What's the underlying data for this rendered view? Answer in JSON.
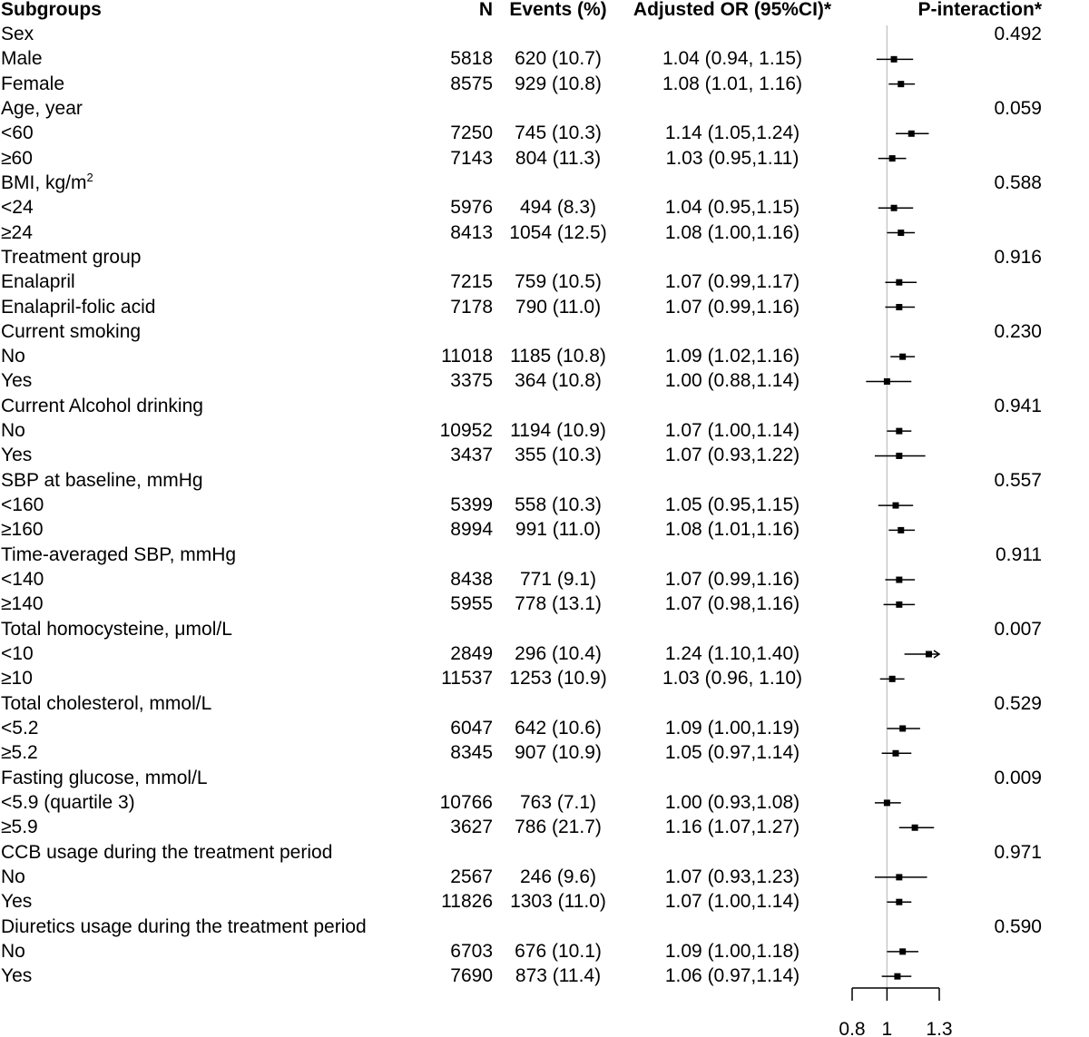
{
  "chart_data": {
    "type": "forest",
    "headers": {
      "subgroup": "Subgroups",
      "n": "N",
      "events": "Events (%)",
      "or": "Adjusted OR (95%CI)*",
      "p": "P-interaction*"
    },
    "xaxis": {
      "ticks": [
        0.8,
        1,
        1.3
      ],
      "tick_labels": [
        "0.8",
        "1",
        "1.3"
      ],
      "xlim": [
        0.8,
        1.3
      ],
      "reference": 1
    },
    "rows": [
      {
        "label": "Sex",
        "p": "0.492"
      },
      {
        "label": "Male",
        "n": "5818",
        "events": "620 (10.7)",
        "or": "1.04 (0.94, 1.15)",
        "est": 1.04,
        "lo": 0.94,
        "hi": 1.15
      },
      {
        "label": "Female",
        "n": "8575",
        "events": "929 (10.8)",
        "or": "1.08 (1.01, 1.16)",
        "est": 1.08,
        "lo": 1.01,
        "hi": 1.16
      },
      {
        "label": "Age, year",
        "p": "0.059"
      },
      {
        "label": "<60",
        "n": "7250",
        "events": "745 (10.3)",
        "or": "1.14 (1.05,1.24)",
        "est": 1.14,
        "lo": 1.05,
        "hi": 1.24
      },
      {
        "label": "≥60",
        "n": "7143",
        "events": "804 (11.3)",
        "or": "1.03 (0.95,1.11)",
        "est": 1.03,
        "lo": 0.95,
        "hi": 1.11
      },
      {
        "label": "BMI, kg/m",
        "sup": "2",
        "p": "0.588"
      },
      {
        "label": "<24",
        "n": "5976",
        "events": "494 (8.3)",
        "or": "1.04 (0.95,1.15)",
        "est": 1.04,
        "lo": 0.95,
        "hi": 1.15
      },
      {
        "label": "≥24",
        "n": "8413",
        "events": "1054 (12.5)",
        "or": "1.08 (1.00,1.16)",
        "est": 1.08,
        "lo": 1.0,
        "hi": 1.16
      },
      {
        "label": "Treatment group",
        "p": "0.916"
      },
      {
        "label": "Enalapril",
        "n": "7215",
        "events": "759 (10.5)",
        "or": "1.07 (0.99,1.17)",
        "est": 1.07,
        "lo": 0.99,
        "hi": 1.17
      },
      {
        "label": "Enalapril-folic acid",
        "n": "7178",
        "events": "790 (11.0)",
        "or": "1.07 (0.99,1.16)",
        "est": 1.07,
        "lo": 0.99,
        "hi": 1.16
      },
      {
        "label": "Current smoking",
        "p": "0.230"
      },
      {
        "label": "No",
        "n": "11018",
        "events": "1185 (10.8)",
        "or": "1.09 (1.02,1.16)",
        "est": 1.09,
        "lo": 1.02,
        "hi": 1.16
      },
      {
        "label": "Yes",
        "n": "3375",
        "events": "364 (10.8)",
        "or": "1.00 (0.88,1.14)",
        "est": 1.0,
        "lo": 0.88,
        "hi": 1.14
      },
      {
        "label": "Current Alcohol drinking",
        "p": "0.941"
      },
      {
        "label": "No",
        "n": "10952",
        "events": "1194 (10.9)",
        "or": "1.07 (1.00,1.14)",
        "est": 1.07,
        "lo": 1.0,
        "hi": 1.14
      },
      {
        "label": "Yes",
        "n": "3437",
        "events": "355 (10.3)",
        "or": "1.07 (0.93,1.22)",
        "est": 1.07,
        "lo": 0.93,
        "hi": 1.22
      },
      {
        "label": "SBP at baseline, mmHg",
        "p": "0.557"
      },
      {
        "label": "<160",
        "n": "5399",
        "events": "558 (10.3)",
        "or": "1.05 (0.95,1.15)",
        "est": 1.05,
        "lo": 0.95,
        "hi": 1.15
      },
      {
        "label": "≥160",
        "n": "8994",
        "events": "991 (11.0)",
        "or": "1.08 (1.01,1.16)",
        "est": 1.08,
        "lo": 1.01,
        "hi": 1.16
      },
      {
        "label": "Time-averaged SBP, mmHg",
        "p": "0.911"
      },
      {
        "label": "<140",
        "n": "8438",
        "events": "771 (9.1)",
        "or": "1.07 (0.99,1.16)",
        "est": 1.07,
        "lo": 0.99,
        "hi": 1.16
      },
      {
        "label": "≥140",
        "n": "5955",
        "events": "778 (13.1)",
        "or": "1.07 (0.98,1.16)",
        "est": 1.07,
        "lo": 0.98,
        "hi": 1.16
      },
      {
        "label": "Total homocysteine, μmol/L",
        "p": "0.007"
      },
      {
        "label": "<10",
        "n": "2849",
        "events": "296 (10.4)",
        "or": "1.24 (1.10,1.40)",
        "est": 1.24,
        "lo": 1.1,
        "hi": 1.4
      },
      {
        "label": "≥10",
        "n": "11537",
        "events": "1253 (10.9)",
        "or": "1.03 (0.96, 1.10)",
        "est": 1.03,
        "lo": 0.96,
        "hi": 1.1
      },
      {
        "label": "Total cholesterol, mmol/L",
        "p": "0.529"
      },
      {
        "label": "<5.2",
        "n": "6047",
        "events": "642 (10.6)",
        "or": "1.09 (1.00,1.19)",
        "est": 1.09,
        "lo": 1.0,
        "hi": 1.19
      },
      {
        "label": "≥5.2",
        "n": "8345",
        "events": "907 (10.9)",
        "or": "1.05 (0.97,1.14)",
        "est": 1.05,
        "lo": 0.97,
        "hi": 1.14
      },
      {
        "label": "Fasting glucose, mmol/L",
        "p": "0.009"
      },
      {
        "label": "<5.9 (quartile 3)",
        "n": "10766",
        "events": "763 (7.1)",
        "or": "1.00 (0.93,1.08)",
        "est": 1.0,
        "lo": 0.93,
        "hi": 1.08
      },
      {
        "label": "≥5.9",
        "n": "3627",
        "events": "786 (21.7)",
        "or": "1.16 (1.07,1.27)",
        "est": 1.16,
        "lo": 1.07,
        "hi": 1.27
      },
      {
        "label": "CCB usage during the treatment period",
        "p": "0.971"
      },
      {
        "label": "No",
        "n": "2567",
        "events": "246 (9.6)",
        "or": "1.07 (0.93,1.23)",
        "est": 1.07,
        "lo": 0.93,
        "hi": 1.23
      },
      {
        "label": "Yes",
        "n": "11826",
        "events": "1303 (11.0)",
        "or": "1.07 (1.00,1.14)",
        "est": 1.07,
        "lo": 1.0,
        "hi": 1.14
      },
      {
        "label": "Diuretics usage during the treatment period",
        "p": "0.590"
      },
      {
        "label": "No",
        "n": "6703",
        "events": "676 (10.1)",
        "or": "1.09 (1.00,1.18)",
        "est": 1.09,
        "lo": 1.0,
        "hi": 1.18
      },
      {
        "label": "Yes",
        "n": "7690",
        "events": "873 (11.4)",
        "or": "1.06 (0.97,1.14)",
        "est": 1.06,
        "lo": 0.97,
        "hi": 1.14
      }
    ],
    "colors": {
      "marks": "#000000",
      "reference_line": "#c8c8c8"
    }
  }
}
